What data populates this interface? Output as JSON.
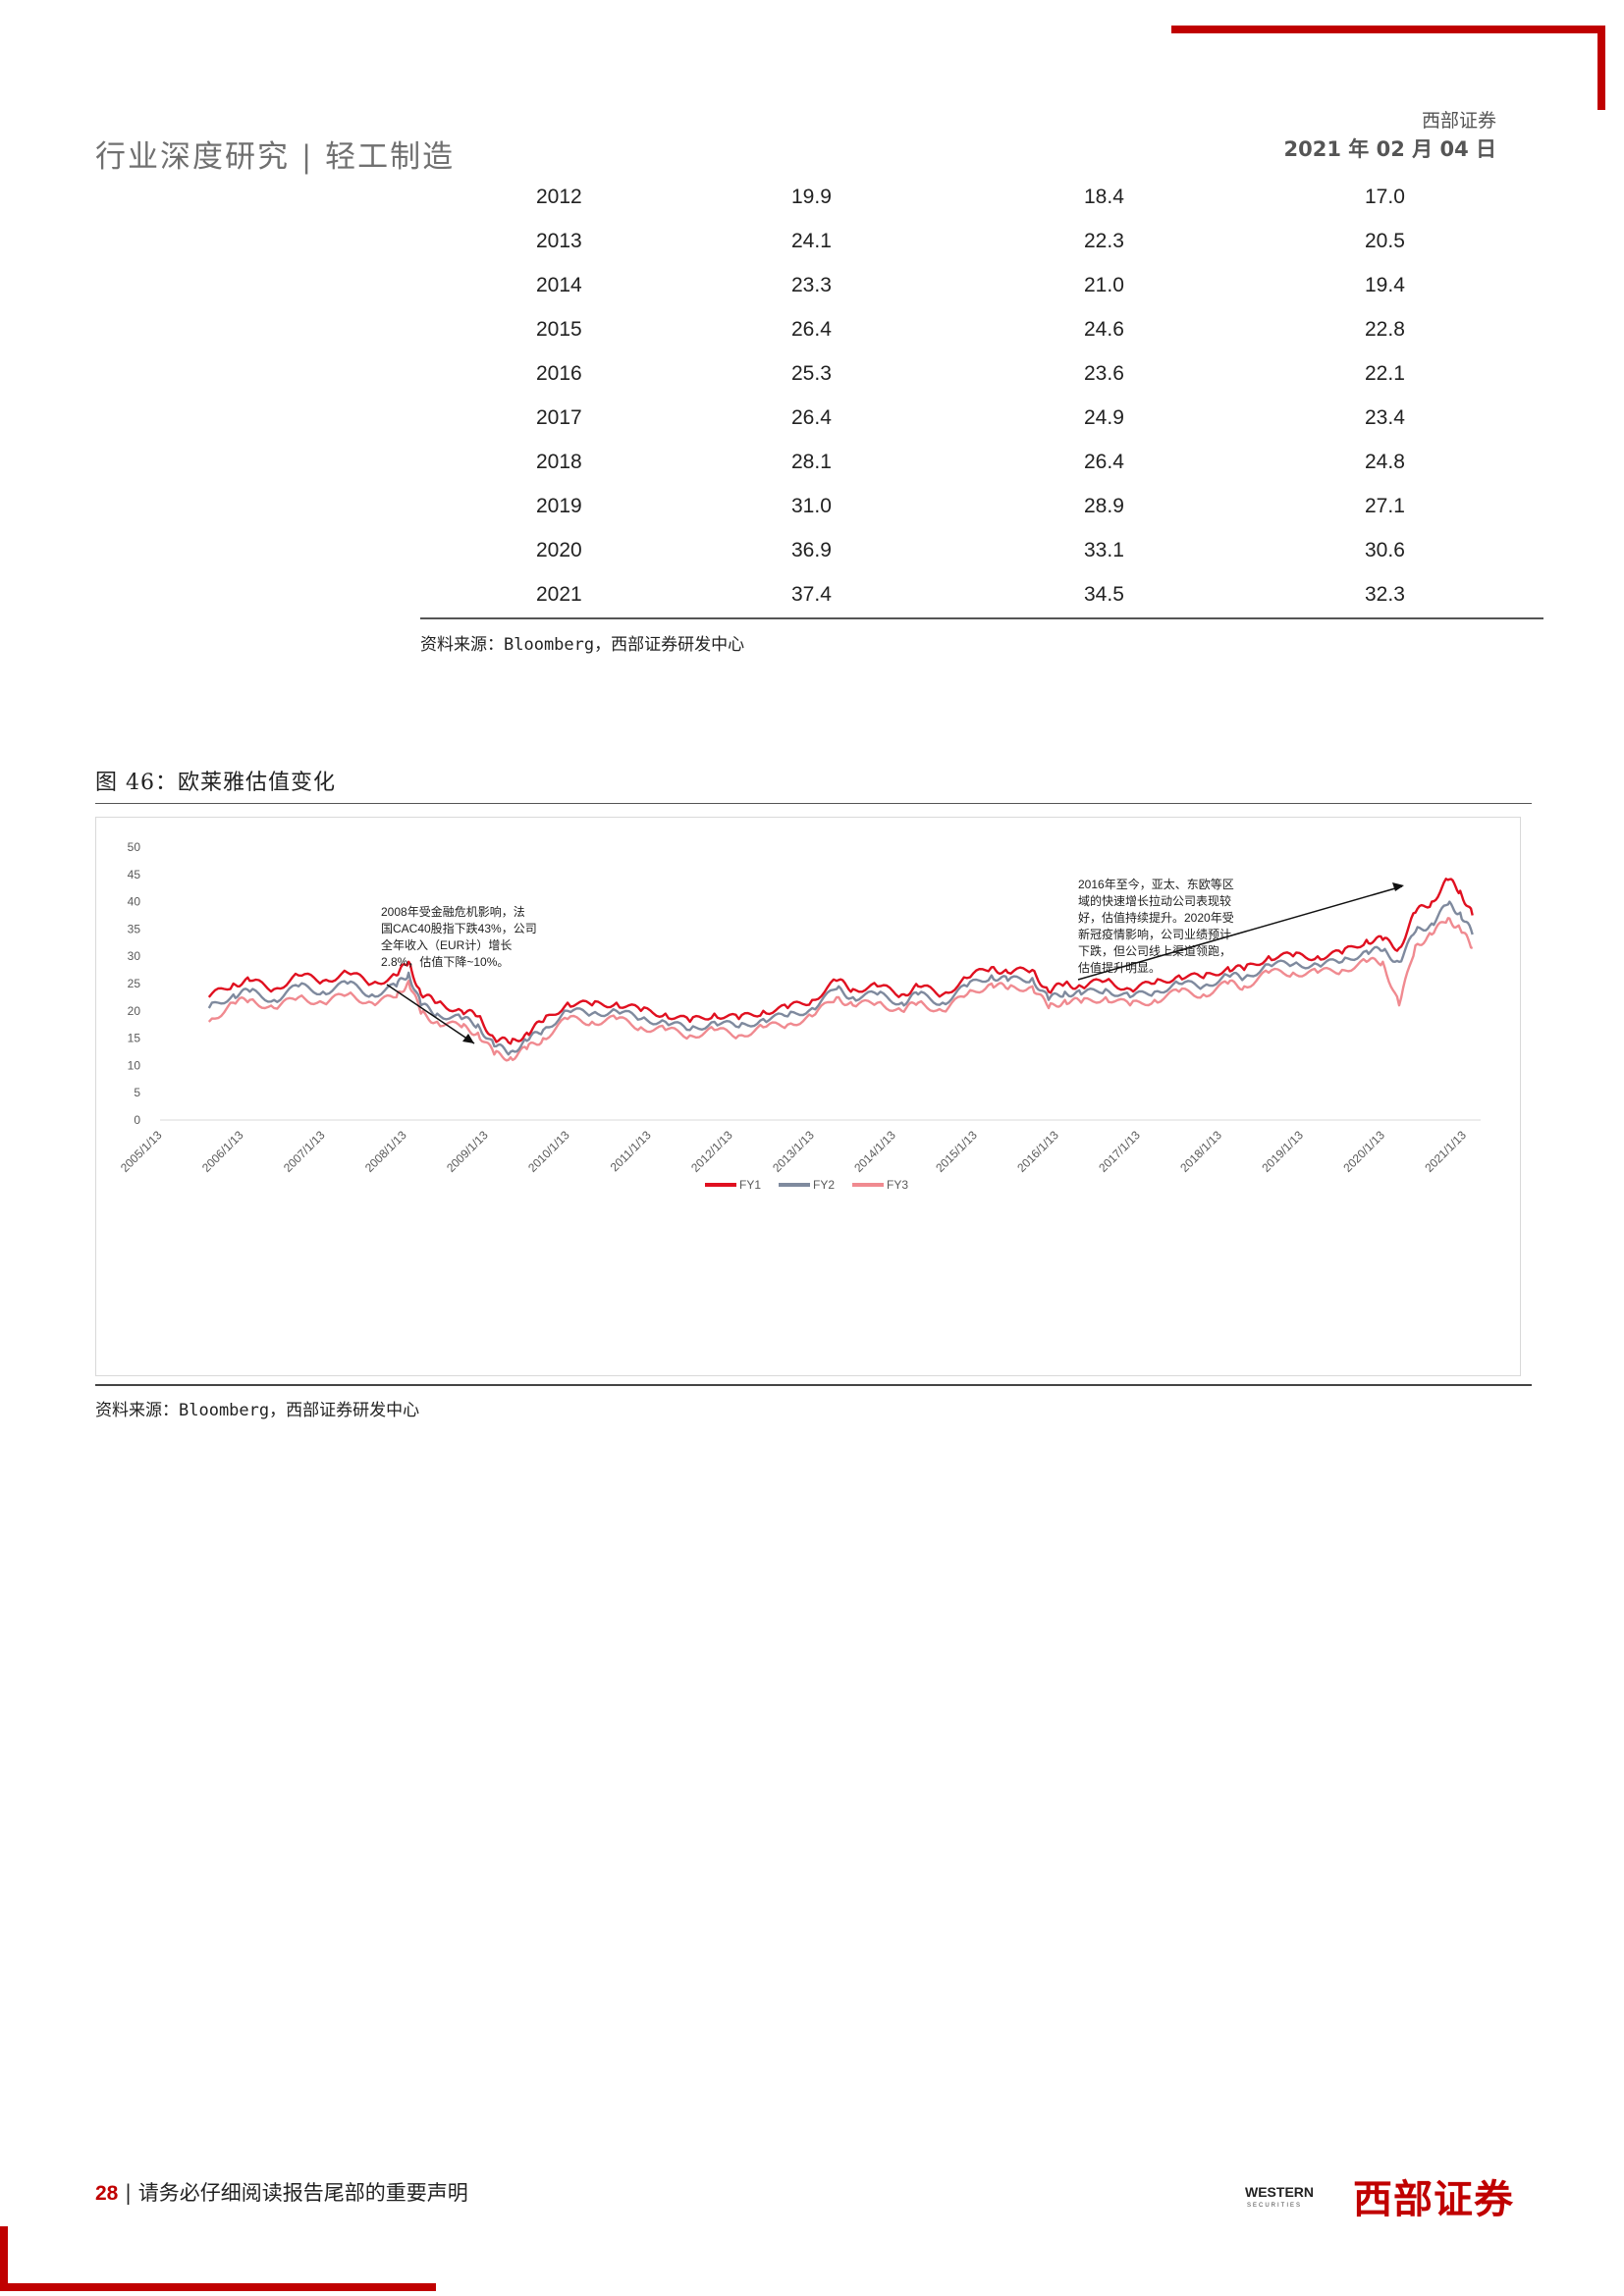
{
  "header": {
    "left_title": "行业深度研究 | 轻工制造",
    "company": "西部证券",
    "date": "2021 年 02 月 04 日"
  },
  "table": {
    "rows": [
      [
        "2012",
        "19.9",
        "18.4",
        "17.0"
      ],
      [
        "2013",
        "24.1",
        "22.3",
        "20.5"
      ],
      [
        "2014",
        "23.3",
        "21.0",
        "19.4"
      ],
      [
        "2015",
        "26.4",
        "24.6",
        "22.8"
      ],
      [
        "2016",
        "25.3",
        "23.6",
        "22.1"
      ],
      [
        "2017",
        "26.4",
        "24.9",
        "23.4"
      ],
      [
        "2018",
        "28.1",
        "26.4",
        "24.8"
      ],
      [
        "2019",
        "31.0",
        "28.9",
        "27.1"
      ],
      [
        "2020",
        "36.9",
        "33.1",
        "30.6"
      ],
      [
        "2021",
        "37.4",
        "34.5",
        "32.3"
      ]
    ],
    "source": "资料来源：Bloomberg，西部证券研发中心"
  },
  "figure": {
    "title": "图 46：欧莱雅估值变化",
    "source": "资料来源：Bloomberg，西部证券研发中心"
  },
  "chart_data": {
    "type": "line",
    "title": "",
    "xlabel": "",
    "ylabel": "",
    "ylim": [
      0,
      50
    ],
    "yticks": [
      "0",
      "5",
      "10",
      "15",
      "20",
      "25",
      "30",
      "35",
      "40",
      "45",
      "50"
    ],
    "xticks": [
      "2005/1/13",
      "2006/1/13",
      "2007/1/13",
      "2008/1/13",
      "2009/1/13",
      "2010/1/13",
      "2011/1/13",
      "2012/1/13",
      "2013/1/13",
      "2014/1/13",
      "2015/1/13",
      "2016/1/13",
      "2017/1/13",
      "2018/1/13",
      "2019/1/13",
      "2020/1/13",
      "2021/1/13"
    ],
    "x": [
      2005.6,
      2005.9,
      2006.1,
      2006.4,
      2006.7,
      2007.0,
      2007.3,
      2007.6,
      2007.9,
      2008.05,
      2008.2,
      2008.4,
      2008.7,
      2008.9,
      2009.1,
      2009.3,
      2009.5,
      2009.7,
      2010.0,
      2010.3,
      2010.6,
      2010.9,
      2011.2,
      2011.5,
      2011.8,
      2012.1,
      2012.4,
      2012.7,
      2013.0,
      2013.3,
      2013.5,
      2013.8,
      2014.1,
      2014.3,
      2014.6,
      2014.9,
      2015.2,
      2015.4,
      2015.7,
      2015.9,
      2016.1,
      2016.3,
      2016.6,
      2016.9,
      2017.2,
      2017.5,
      2017.8,
      2018.1,
      2018.3,
      2018.6,
      2018.9,
      2019.2,
      2019.5,
      2019.8,
      2020.0,
      2020.2,
      2020.4,
      2020.6,
      2020.8,
      2020.95,
      2021.1
    ],
    "series": [
      {
        "name": "FY1",
        "color": "#e01020",
        "values": [
          22.5,
          25,
          25.5,
          24,
          26.5,
          25.5,
          27,
          25,
          26.5,
          29,
          23,
          21.5,
          20,
          19,
          15,
          14,
          16,
          18,
          21.5,
          21,
          21.5,
          20,
          19.5,
          18,
          19.5,
          18.5,
          20,
          20.5,
          22,
          25.5,
          24,
          24.5,
          23,
          24.5,
          23,
          26,
          28,
          27,
          27.5,
          23.5,
          25,
          24.5,
          25.5,
          24,
          25,
          26.5,
          26,
          28,
          27.5,
          30,
          30,
          30,
          30.5,
          33,
          33,
          31.5,
          38,
          40,
          44,
          42,
          37.5
        ]
      },
      {
        "name": "FY2",
        "color": "#7f8a9e",
        "values": [
          20.5,
          23,
          23.5,
          22,
          24.5,
          23.5,
          25,
          23,
          24.5,
          27,
          21,
          19.5,
          18.5,
          17.5,
          13.5,
          12.5,
          14.5,
          16.5,
          20,
          19.5,
          20,
          18.5,
          18,
          16.5,
          18,
          17,
          18.5,
          19,
          20.5,
          24,
          22.5,
          23,
          21.5,
          23,
          21.5,
          24.5,
          26.5,
          25.5,
          26,
          22,
          23.5,
          23,
          24,
          22.5,
          23.5,
          25,
          24.5,
          26.5,
          26,
          28.5,
          28.5,
          28.5,
          29,
          31,
          31,
          29,
          34.5,
          36,
          39.5,
          38,
          34
        ]
      },
      {
        "name": "FY3",
        "color": "#f08a90",
        "values": [
          18,
          21.5,
          22,
          20.5,
          22.5,
          21.5,
          23,
          21.5,
          22.5,
          25.5,
          19.5,
          18,
          17,
          16,
          12,
          11.5,
          13,
          15,
          18.5,
          18,
          18.5,
          17,
          16.5,
          15.5,
          16.5,
          15.5,
          17,
          17.5,
          19,
          22.5,
          21,
          21.5,
          20,
          21.5,
          20,
          23,
          25,
          24,
          24.5,
          20.5,
          22,
          21.5,
          22.5,
          21,
          22,
          23.5,
          23,
          25,
          24.5,
          27,
          27,
          27,
          27.5,
          29,
          29,
          21,
          32,
          34,
          37,
          35,
          31.5
        ]
      }
    ],
    "legend": "bottom",
    "annotations": [
      {
        "lines": [
          "2008年受金融危机影响，法",
          "国CAC40股指下跌43%，公司",
          "全年收入（EUR计）增长",
          "2.8%，估值下降~10%。"
        ]
      },
      {
        "lines": [
          "2016年至今，亚太、东欧等区",
          "域的快速增长拉动公司表现较",
          "好，估值持续提升。2020年受",
          "新冠疫情影响，公司业绩预计",
          "下跌，但公司线上渠道领跑，",
          "估值提升明显。"
        ]
      }
    ]
  },
  "footer": {
    "page": "28",
    "text": "| 请务必仔细阅读报告尾部的重要声明",
    "logo_en": "WESTERN",
    "logo_sub": "SECURITIES",
    "logo_cn": "西部证券"
  }
}
